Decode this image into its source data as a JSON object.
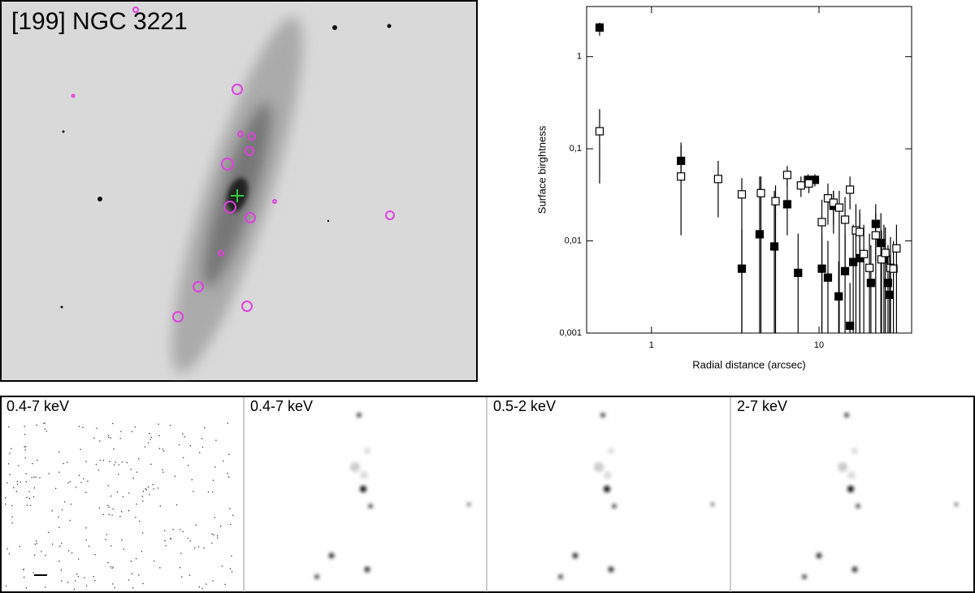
{
  "image_panel": {
    "title": "[199] NGC 3221"
  },
  "chart_data": {
    "type": "scatter",
    "x_label": "Radial distance (arcsec)",
    "y_label": "Surface birghtness",
    "log_x": true,
    "log_y": true,
    "xlim": [
      0.41,
      35.7
    ],
    "ylim": [
      0.001,
      3.5
    ],
    "xticks": [
      1,
      10
    ],
    "yticks": [
      {
        "value": 0.001,
        "label": "0,001"
      },
      {
        "value": 0.01,
        "label": "0,01"
      },
      {
        "value": 0.1,
        "label": "0,1"
      },
      1
    ],
    "series": [
      {
        "marker": "filled",
        "color": "#000000",
        "x": [
          0.49,
          1.5,
          3.46,
          4.42,
          5.41,
          6.46,
          7.5,
          8.6,
          9.45,
          10.4,
          11.3,
          12.2,
          13.1,
          14.3,
          15.3,
          16.0,
          17.5,
          20.4,
          21.8,
          23.4,
          24.4,
          25.8,
          26.4
        ],
        "values": [
          2.07,
          0.074,
          0.005,
          0.0118,
          0.0087,
          0.025,
          0.0045,
          0.046,
          0.046,
          0.005,
          0.004,
          0.024,
          0.0025,
          0.0047,
          0.0012,
          0.0059,
          0.0065,
          0.0035,
          0.0153,
          0.0095,
          0.0063,
          0.0035,
          0.0026
        ],
        "ylow": [
          1.69,
          0.044,
          0.001,
          0.001,
          0.001,
          0.0115,
          0.001,
          0.039,
          0.039,
          0.001,
          0.001,
          0.012,
          0.001,
          0.001,
          0.001,
          0.001,
          0.001,
          0.001,
          0.006,
          0.001,
          0.001,
          0.001,
          0.001
        ],
        "yhigh": [
          2.34,
          0.117,
          0.0135,
          0.05,
          0.035,
          0.05,
          0.012,
          0.053,
          0.053,
          0.012,
          0.01,
          0.035,
          0.006,
          0.012,
          0.0035,
          0.015,
          0.02,
          0.009,
          0.025,
          0.02,
          0.015,
          0.009,
          0.007
        ]
      },
      {
        "marker": "open",
        "color": "#000000",
        "x": [
          0.49,
          1.5,
          2.5,
          3.46,
          4.5,
          5.5,
          6.46,
          7.8,
          8.7,
          10.4,
          11.3,
          12.2,
          13.2,
          14.3,
          15.3,
          16.6,
          17.5,
          18.5,
          20,
          21.8,
          23.6,
          24.9,
          26.7,
          27.8,
          29
        ],
        "values": [
          0.155,
          0.05,
          0.047,
          0.032,
          0.033,
          0.027,
          0.052,
          0.04,
          0.042,
          0.016,
          0.029,
          0.026,
          0.023,
          0.017,
          0.036,
          0.013,
          0.0125,
          0.0072,
          0.0051,
          0.0115,
          0.0063,
          0.0074,
          0.0051,
          0.005,
          0.0083
        ],
        "ylow": [
          0.042,
          0.0115,
          0.018,
          0.001,
          0.001,
          0.001,
          0.04,
          0.03,
          0.033,
          0.001,
          0.015,
          0.015,
          0.001,
          0.005,
          0.022,
          0.001,
          0.001,
          0.001,
          0.001,
          0.001,
          0.001,
          0.001,
          0.001,
          0.001,
          0.001
        ],
        "yhigh": [
          0.27,
          0.108,
          0.074,
          0.048,
          0.05,
          0.04,
          0.065,
          0.05,
          0.05,
          0.028,
          0.042,
          0.035,
          0.035,
          0.03,
          0.05,
          0.025,
          0.022,
          0.015,
          0.012,
          0.02,
          0.013,
          0.014,
          0.011,
          0.01,
          0.015
        ]
      }
    ]
  },
  "xray_panels": [
    {
      "label": "0.4-7 keV"
    },
    {
      "label": "0.4-7 keV"
    },
    {
      "label": "0.5-2 keV"
    },
    {
      "label": "2-7 keV"
    }
  ]
}
